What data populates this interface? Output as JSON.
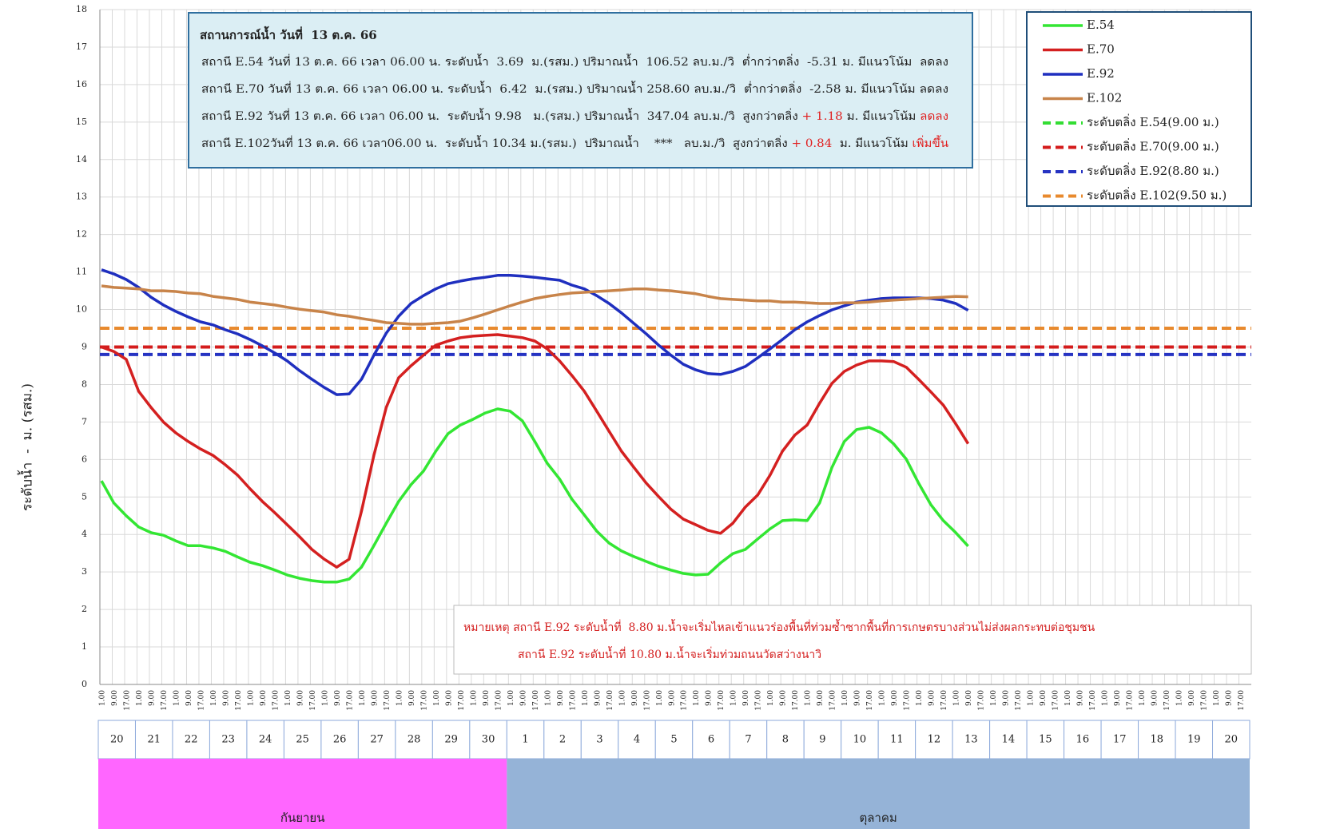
{
  "chart_data": {
    "type": "line",
    "ylabel": "ระดับน้ำ  -  ม. (รสม.)",
    "ylim": [
      0,
      18
    ],
    "yticks": [
      0,
      1,
      2,
      3,
      4,
      5,
      6,
      7,
      8,
      9,
      10,
      11,
      12,
      13,
      14,
      15,
      16,
      17,
      18
    ],
    "grid": true,
    "legend": "upper right",
    "categories": [
      "1.00",
      "9.00",
      "17.00",
      "1.00",
      "9.00",
      "17.00",
      "1.00",
      "9.00",
      "17.00",
      "1.00",
      "9.00",
      "17.00",
      "1.00",
      "9.00",
      "17.00",
      "1.00",
      "9.00",
      "17.00",
      "1.00",
      "9.00",
      "17.00",
      "1.00",
      "9.00",
      "17.00",
      "1.00",
      "9.00",
      "17.00",
      "1.00",
      "9.00",
      "17.00",
      "1.00",
      "9.00",
      "17.00",
      "1.00",
      "9.00",
      "17.00",
      "1.00",
      "9.00",
      "17.00",
      "1.00",
      "9.00",
      "17.00",
      "1.00",
      "9.00",
      "17.00",
      "1.00",
      "9.00",
      "17.00",
      "1.00",
      "9.00",
      "17.00",
      "1.00",
      "9.00",
      "17.00",
      "1.00",
      "9.00",
      "17.00",
      "1.00",
      "9.00",
      "17.00",
      "1.00",
      "9.00",
      "17.00",
      "1.00",
      "9.00",
      "17.00",
      "1.00",
      "9.00",
      "17.00",
      "1.00",
      "9.00",
      "17.00",
      "1.00",
      "9.00",
      "17.00",
      "1.00",
      "9.00",
      "17.00",
      "1.00",
      "9.00",
      "17.00",
      "1.00",
      "9.00",
      "17.00",
      "1.00",
      "9.00",
      "17.00",
      "1.00",
      "9.00",
      "17.00",
      "1.00",
      "9.00",
      "17.00"
    ],
    "days": [
      "20",
      "21",
      "22",
      "23",
      "24",
      "25",
      "26",
      "27",
      "28",
      "29",
      "30",
      "1",
      "2",
      "3",
      "4",
      "5",
      "6",
      "7",
      "8",
      "9",
      "10",
      "11",
      "12",
      "13",
      "14",
      "15",
      "16",
      "17",
      "18",
      "19",
      "20"
    ],
    "months": [
      "กันยายน",
      "ตุลาคม"
    ],
    "month_colors": [
      "#ff66ff",
      "#95b3d7"
    ],
    "series": [
      {
        "name": "E.54",
        "color": "#33e633",
        "values": [
          5.43,
          4.84,
          4.5,
          4.2,
          4.05,
          3.98,
          3.83,
          3.7,
          3.7,
          3.64,
          3.55,
          3.4,
          3.26,
          3.17,
          3.05,
          2.92,
          2.83,
          2.77,
          2.73,
          2.73,
          2.81,
          3.13,
          3.7,
          4.3,
          4.88,
          5.33,
          5.69,
          6.22,
          6.69,
          6.92,
          7.07,
          7.24,
          7.35,
          7.29,
          7.03,
          6.48,
          5.9,
          5.48,
          4.94,
          4.52,
          4.09,
          3.77,
          3.56,
          3.41,
          3.28,
          3.15,
          3.05,
          2.96,
          2.92,
          2.94,
          3.24,
          3.49,
          3.6,
          3.88,
          4.15,
          4.37,
          4.39,
          4.37,
          4.84,
          5.79,
          6.48,
          6.8,
          6.86,
          6.71,
          6.41,
          6.01,
          5.37,
          4.79,
          4.37,
          4.05,
          3.69,
          null,
          null,
          null,
          null,
          null,
          null,
          null,
          null,
          null,
          null,
          null,
          null,
          null,
          null,
          null,
          null,
          null,
          null,
          null,
          null,
          null,
          null
        ]
      },
      {
        "name": "E.70",
        "color": "#d42020",
        "values": [
          9.0,
          8.88,
          8.67,
          7.82,
          7.39,
          7.0,
          6.71,
          6.48,
          6.28,
          6.11,
          5.86,
          5.58,
          5.22,
          4.88,
          4.58,
          4.26,
          3.94,
          3.6,
          3.34,
          3.13,
          3.34,
          4.62,
          6.11,
          7.39,
          8.18,
          8.5,
          8.78,
          9.05,
          9.16,
          9.25,
          9.29,
          9.31,
          9.33,
          9.29,
          9.25,
          9.16,
          8.95,
          8.63,
          8.24,
          7.82,
          7.29,
          6.75,
          6.22,
          5.79,
          5.37,
          5.01,
          4.67,
          4.41,
          4.26,
          4.11,
          4.03,
          4.3,
          4.73,
          5.05,
          5.58,
          6.22,
          6.65,
          6.92,
          7.5,
          8.03,
          8.35,
          8.52,
          8.63,
          8.63,
          8.61,
          8.46,
          8.14,
          7.8,
          7.45,
          6.95,
          6.42,
          null,
          null,
          null,
          null,
          null,
          null,
          null,
          null,
          null,
          null,
          null,
          null,
          null,
          null,
          null,
          null,
          null,
          null,
          null,
          null,
          null,
          null
        ]
      },
      {
        "name": "E.92",
        "color": "#1f2fbf",
        "values": [
          11.06,
          10.95,
          10.8,
          10.59,
          10.33,
          10.12,
          9.95,
          9.8,
          9.67,
          9.59,
          9.46,
          9.35,
          9.2,
          9.03,
          8.84,
          8.63,
          8.37,
          8.14,
          7.92,
          7.73,
          7.75,
          8.14,
          8.78,
          9.37,
          9.82,
          10.16,
          10.37,
          10.55,
          10.69,
          10.76,
          10.82,
          10.86,
          10.91,
          10.91,
          10.89,
          10.86,
          10.82,
          10.78,
          10.65,
          10.55,
          10.37,
          10.16,
          9.91,
          9.63,
          9.35,
          9.05,
          8.78,
          8.54,
          8.39,
          8.29,
          8.27,
          8.35,
          8.48,
          8.71,
          8.95,
          9.2,
          9.46,
          9.67,
          9.84,
          9.99,
          10.1,
          10.2,
          10.25,
          10.29,
          10.31,
          10.31,
          10.31,
          10.29,
          10.25,
          10.16,
          9.98,
          null,
          null,
          null,
          null,
          null,
          null,
          null,
          null,
          null,
          null,
          null,
          null,
          null,
          null,
          null,
          null,
          null,
          null,
          null,
          null,
          null,
          null
        ]
      },
      {
        "name": "E.102",
        "color": "#c8844a",
        "values": [
          10.63,
          10.59,
          10.57,
          10.55,
          10.5,
          10.5,
          10.48,
          10.44,
          10.42,
          10.35,
          10.31,
          10.27,
          10.2,
          10.16,
          10.12,
          10.06,
          10.01,
          9.97,
          9.93,
          9.86,
          9.82,
          9.76,
          9.71,
          9.65,
          9.63,
          9.61,
          9.61,
          9.63,
          9.65,
          9.69,
          9.78,
          9.88,
          9.99,
          10.1,
          10.2,
          10.29,
          10.35,
          10.4,
          10.44,
          10.46,
          10.48,
          10.5,
          10.52,
          10.55,
          10.55,
          10.52,
          10.5,
          10.46,
          10.42,
          10.35,
          10.29,
          10.27,
          10.25,
          10.23,
          10.23,
          10.2,
          10.2,
          10.18,
          10.16,
          10.16,
          10.18,
          10.18,
          10.2,
          10.23,
          10.25,
          10.27,
          10.29,
          10.31,
          10.33,
          10.35,
          10.34,
          null,
          null,
          null,
          null,
          null,
          null,
          null,
          null,
          null,
          null,
          null,
          null,
          null,
          null,
          null,
          null,
          null,
          null,
          null,
          null,
          null,
          null
        ]
      }
    ],
    "thresholds": [
      {
        "name": "ระดับตลิ่ง E.54(9.00 ม.)",
        "color": "#33dd33",
        "value": 9.0
      },
      {
        "name": "ระดับตลิ่ง E.70(9.00 ม.)",
        "color": "#d41c1c",
        "value": 9.0
      },
      {
        "name": "ระดับตลิ่ง E.92(8.80 ม.)",
        "color": "#2633c2",
        "value": 8.8
      },
      {
        "name": "ระดับตลิ่ง E.102(9.50 ม.)",
        "color": "#e88a2e",
        "value": 9.5
      }
    ],
    "info": {
      "title": "สถานการณ์น้ำ วันที่  13 ต.ค. 66",
      "lines": [
        [
          "สถานี E.54 วันที่ 13 ต.ค. 66 เวลา 06.00 น. ระดับน้ำ  3.69  ม.(รสม.) ปริมาณน้ำ  106.52 ลบ.ม./วิ  ต่ำกว่าตลิ่ง  -5.31 ม. มีแนวโน้ม  ลดลง"
        ],
        [
          "สถานี E.70 วันที่ 13 ต.ค. 66 เวลา 06.00 น. ระดับน้ำ  6.42  ม.(รสม.) ปริมาณน้ำ 258.60 ลบ.ม./วิ  ต่ำกว่าตลิ่ง  -2.58 ม. มีแนวโน้ม ลดลง"
        ],
        [
          "สถานี E.92 วันที่ 13 ต.ค. 66 เวลา 06.00 น.  ระดับน้ำ 9.98   ม.(รสม.) ปริมาณน้ำ  347.04 ลบ.ม./วิ  สูงกว่าตลิ่ง ",
          "+ 1.18",
          " ม. มีแนวโน้ม ",
          "ลดลง"
        ],
        [
          "สถานี E.102วันที่ 13 ต.ค. 66 เวลา06.00 น.  ระดับน้ำ 10.34 ม.(รสม.)  ปริมาณน้ำ    ***   ลบ.ม./วิ  สูงกว่าตลิ่ง ",
          "+ 0.84",
          "  ม. มีแนวโน้ม ",
          "เพิ่มขึ้น"
        ]
      ]
    },
    "note": [
      "หมายเหตุ สถานี E.92 ระดับน้ำที่  8.80 ม.น้ำจะเริ่มไหลเข้าแนวร่องพื้นที่ท่วมซ้ำซากพื้นที่การเกษตรบางส่วนไม่ส่งผลกระทบต่อชุมชน",
      "สถานี E.92 ระดับน้ำที่ 10.80 ม.น้ำจะเริ่มท่วมถนนวัดสว่างนาวิ"
    ]
  }
}
